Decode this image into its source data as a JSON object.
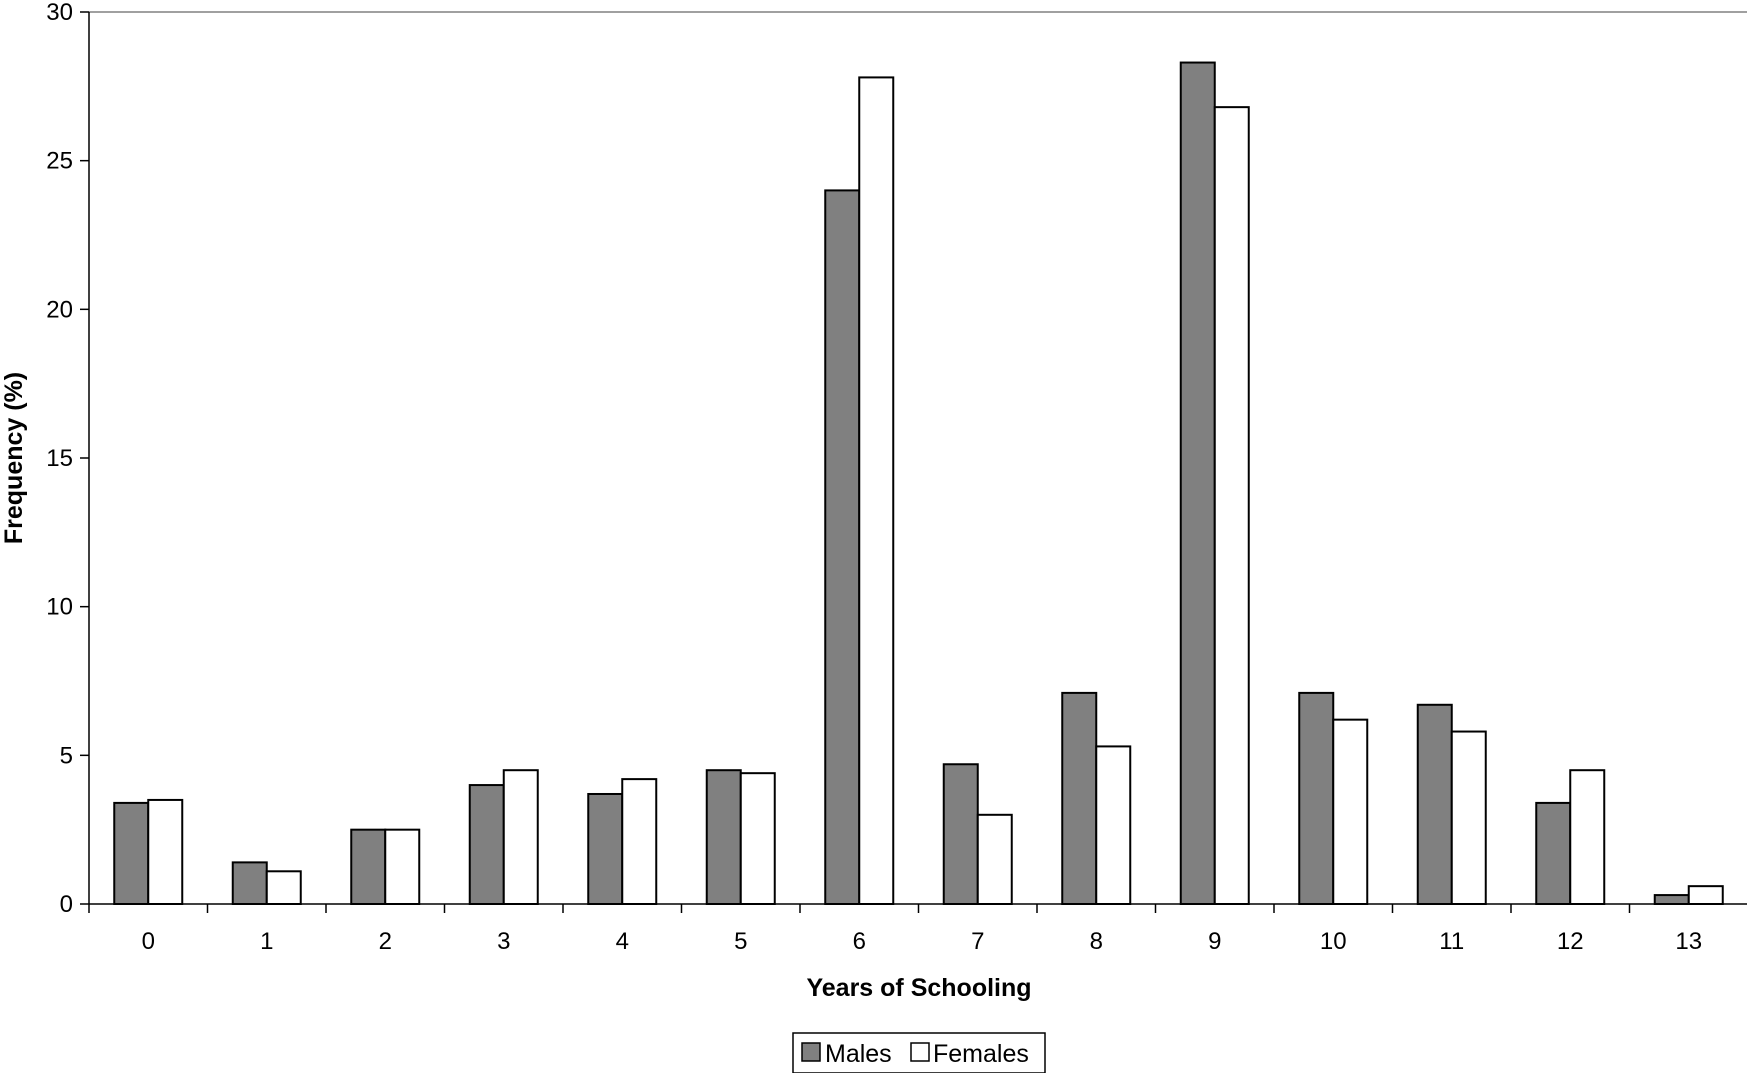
{
  "chart_data": {
    "type": "bar",
    "categories": [
      "0",
      "1",
      "2",
      "3",
      "4",
      "5",
      "6",
      "7",
      "8",
      "9",
      "10",
      "11",
      "12",
      "13"
    ],
    "series": [
      {
        "name": "Males",
        "color": "#808080",
        "values": [
          3.4,
          1.4,
          2.5,
          4.0,
          3.7,
          4.5,
          24.0,
          4.7,
          7.1,
          28.3,
          7.1,
          6.7,
          3.4,
          0.3
        ]
      },
      {
        "name": "Females",
        "color": "#ffffff",
        "values": [
          3.5,
          1.1,
          2.5,
          4.5,
          4.2,
          4.4,
          27.8,
          3.0,
          5.3,
          26.8,
          6.2,
          5.8,
          4.5,
          0.6
        ]
      }
    ],
    "title": "",
    "xlabel": "Years of Schooling",
    "ylabel": "Frequency (%)",
    "ylim": [
      0,
      30
    ],
    "yticks": [
      "0",
      "5",
      "10",
      "15",
      "20",
      "25",
      "30"
    ],
    "grid": false,
    "legend_position": "bottom-center"
  }
}
